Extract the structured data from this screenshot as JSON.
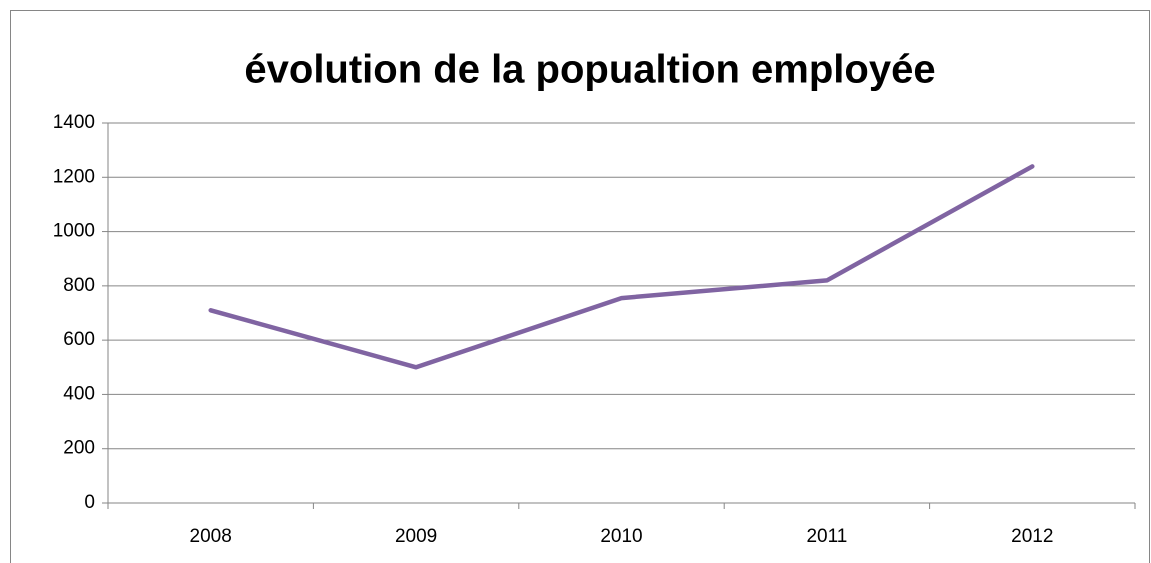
{
  "chart_data": {
    "type": "line",
    "title": "évolution de la popualtion employée",
    "categories": [
      "2008",
      "2009",
      "2010",
      "2011",
      "2012"
    ],
    "values": [
      710,
      500,
      755,
      820,
      1240
    ],
    "color": "#8064a2",
    "ylim": [
      0,
      1400
    ],
    "yticks": [
      0,
      200,
      400,
      600,
      800,
      1000,
      1200,
      1400
    ],
    "grid": true
  }
}
